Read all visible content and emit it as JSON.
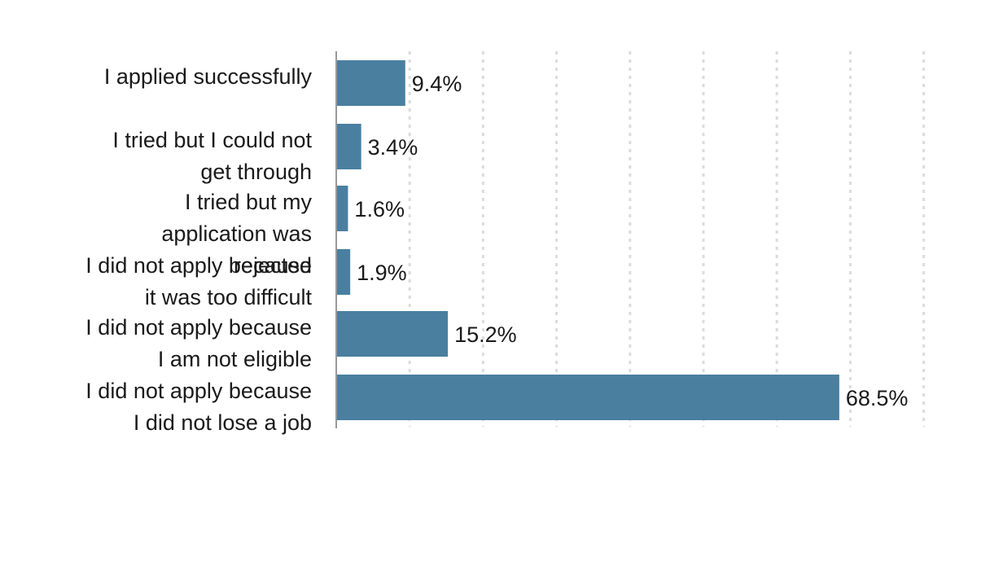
{
  "chart_data": {
    "type": "bar",
    "orientation": "horizontal",
    "categories": [
      "I applied successfully",
      "I tried but I could not get through",
      "I tried but my application was rejected",
      "I did not apply because it was too difficult",
      "I did not apply because I am not eligible",
      "I did not apply because I did not lose a job"
    ],
    "category_lines": [
      [
        "I applied successfully"
      ],
      [
        "I tried but I could not",
        "get through"
      ],
      [
        "I tried but my",
        "application was",
        "rejected"
      ],
      [
        "I did not apply because",
        "it was too difficult"
      ],
      [
        "I did not apply because",
        "I am not eligible"
      ],
      [
        "I did not apply because",
        "I did not lose a job"
      ]
    ],
    "values": [
      9.4,
      3.4,
      1.6,
      1.9,
      15.2,
      68.5
    ],
    "data_labels": [
      "9.4%",
      "3.4%",
      "1.6%",
      "1.9%",
      "15.2%",
      "68.5%"
    ],
    "xlim": [
      0,
      80
    ],
    "x_grid_step": 10,
    "grid": "vertical dotted lines",
    "legend": "none",
    "title": "",
    "xlabel": "",
    "ylabel": "",
    "bar_color": "#4a7fa0",
    "axis_color": "#9a9a9a",
    "grid_color": "#dcdcdc"
  }
}
